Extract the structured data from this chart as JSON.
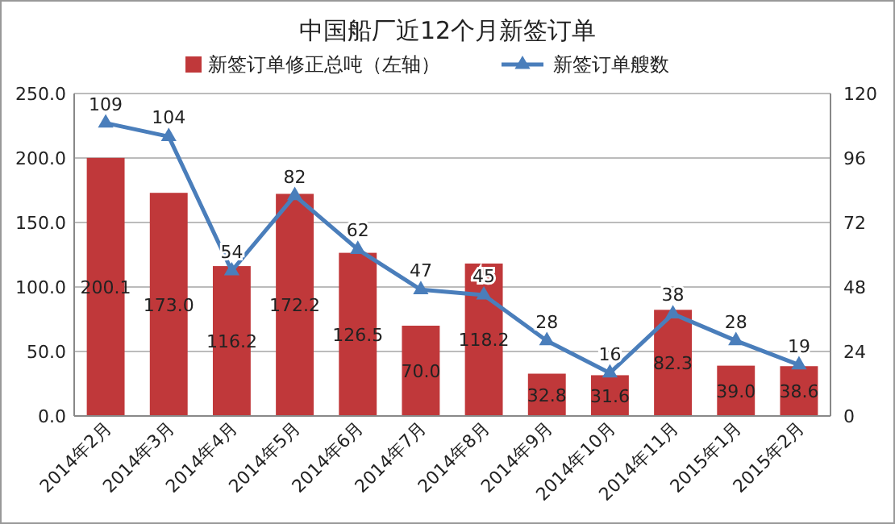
{
  "chart_data": {
    "type": "bar",
    "title": "中国船厂近12个月新签订单",
    "categories": [
      "2014年2月",
      "2014年3月",
      "2014年4月",
      "2014年5月",
      "2014年6月",
      "2014年7月",
      "2014年8月",
      "2014年9月",
      "2014年10月",
      "2014年11月",
      "2015年1月",
      "2015年2月"
    ],
    "series": [
      {
        "name": "新签订单修正总吨（左轴）",
        "color": "#c0383a",
        "values": [
          200.1,
          173.0,
          116.2,
          172.2,
          126.5,
          70.0,
          118.2,
          32.8,
          31.6,
          82.3,
          39.0,
          38.6
        ],
        "value_labels": [
          "200.1",
          "173.0",
          "116.2",
          "172.2",
          "126.5",
          "70.0",
          "118.2",
          "32.8",
          "31.6",
          "82.3",
          "39.0",
          "38.6"
        ]
      },
      {
        "name": "新签订单艘数",
        "type": "line",
        "axis": "y2",
        "color": "#4a7ebb",
        "marker": "triangle",
        "values": [
          109,
          104,
          54,
          82,
          62,
          47,
          45,
          28,
          16,
          38,
          28,
          19
        ],
        "value_labels": [
          "109",
          "104",
          "54",
          "82",
          "62",
          "47",
          "45",
          "28",
          "16",
          "38",
          "28",
          "19"
        ]
      }
    ],
    "ylim": [
      0,
      250
    ],
    "yticks": [
      {
        "value": 0,
        "label": "0.0"
      },
      {
        "value": 50,
        "label": "50.0"
      },
      {
        "value": 100,
        "label": "100.0"
      },
      {
        "value": 150,
        "label": "150.0"
      },
      {
        "value": 200,
        "label": "200.0"
      },
      {
        "value": 250,
        "label": "250.0"
      }
    ],
    "y2lim": [
      0,
      120
    ],
    "y2ticks": [
      0,
      24,
      48,
      72,
      96,
      120
    ],
    "grid": "y",
    "legend": "top"
  }
}
